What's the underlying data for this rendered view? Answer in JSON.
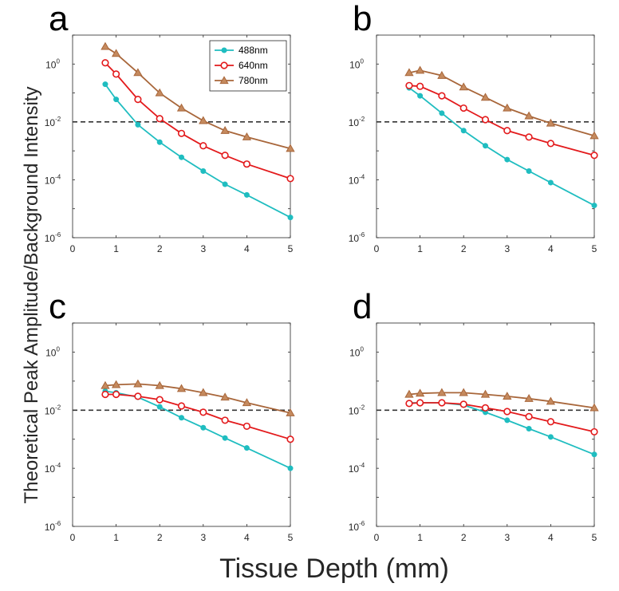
{
  "figure": {
    "ylabel": "Theoretical Peak Amplitude/Background Intensity",
    "xlabel": "Tissue Depth (mm)"
  },
  "colors": {
    "488nm": "#1FBDC0",
    "640nm": "#E31A1C",
    "780nm": "#A8663A",
    "threshold": "#000000"
  },
  "legend": {
    "placement": "top-right of panel a",
    "entries": [
      {
        "label": "488nm",
        "marker": "circle-filled",
        "color_key": "488nm"
      },
      {
        "label": "640nm",
        "marker": "circle-open",
        "color_key": "640nm"
      },
      {
        "label": "780nm",
        "marker": "triangle-filled",
        "color_key": "780nm"
      }
    ]
  },
  "chart_data": [
    {
      "panel": "a",
      "type": "line",
      "yscale": "log",
      "xlim": [
        0,
        5
      ],
      "ylim": [
        1e-06,
        10
      ],
      "xticks": [
        "0",
        "1",
        "2",
        "3",
        "4",
        "5"
      ],
      "yticks": [
        {
          "base": "10",
          "exp": "0"
        },
        {
          "base": "10",
          "exp": "-2"
        },
        {
          "base": "10",
          "exp": "-4"
        },
        {
          "base": "10",
          "exp": "-6"
        }
      ],
      "x": [
        0.75,
        1,
        1.5,
        2,
        2.5,
        3,
        3.5,
        4,
        5
      ],
      "threshold": 0.01,
      "series": [
        {
          "name": "488nm",
          "values": [
            0.2,
            0.06,
            0.008,
            0.002,
            0.0006,
            0.0002,
            7e-05,
            3e-05,
            5e-06
          ]
        },
        {
          "name": "640nm",
          "values": [
            1.1,
            0.45,
            0.06,
            0.013,
            0.004,
            0.0015,
            0.0007,
            0.00035,
            0.00011
          ]
        },
        {
          "name": "780nm",
          "values": [
            4,
            2.3,
            0.5,
            0.1,
            0.03,
            0.011,
            0.005,
            0.003,
            0.0012
          ]
        }
      ]
    },
    {
      "panel": "b",
      "type": "line",
      "yscale": "log",
      "xlim": [
        0,
        5
      ],
      "ylim": [
        1e-06,
        10
      ],
      "xticks": [
        "0",
        "1",
        "2",
        "3",
        "4",
        "5"
      ],
      "yticks": [
        {
          "base": "10",
          "exp": "0"
        },
        {
          "base": "10",
          "exp": "-2"
        },
        {
          "base": "10",
          "exp": "-4"
        },
        {
          "base": "10",
          "exp": "-6"
        }
      ],
      "x": [
        0.75,
        1,
        1.5,
        2,
        2.5,
        3,
        3.5,
        4,
        5
      ],
      "threshold": 0.01,
      "series": [
        {
          "name": "488nm",
          "values": [
            0.15,
            0.08,
            0.02,
            0.005,
            0.0015,
            0.0005,
            0.0002,
            8e-05,
            1.3e-05
          ]
        },
        {
          "name": "640nm",
          "values": [
            0.18,
            0.17,
            0.08,
            0.03,
            0.012,
            0.005,
            0.003,
            0.0018,
            0.0007
          ]
        },
        {
          "name": "780nm",
          "values": [
            0.5,
            0.6,
            0.4,
            0.16,
            0.07,
            0.03,
            0.016,
            0.009,
            0.0033
          ]
        }
      ]
    },
    {
      "panel": "c",
      "type": "line",
      "yscale": "log",
      "xlim": [
        0,
        5
      ],
      "ylim": [
        1e-06,
        10
      ],
      "xticks": [
        "0",
        "1",
        "2",
        "3",
        "4",
        "5"
      ],
      "yticks": [
        {
          "base": "10",
          "exp": "0"
        },
        {
          "base": "10",
          "exp": "-2"
        },
        {
          "base": "10",
          "exp": "-4"
        },
        {
          "base": "10",
          "exp": "-6"
        }
      ],
      "x": [
        0.75,
        1,
        1.5,
        2,
        2.5,
        3,
        3.5,
        4,
        5
      ],
      "threshold": 0.01,
      "series": [
        {
          "name": "488nm",
          "values": [
            0.045,
            0.04,
            0.028,
            0.013,
            0.0055,
            0.0025,
            0.0011,
            0.0005,
            0.0001
          ]
        },
        {
          "name": "640nm",
          "values": [
            0.035,
            0.035,
            0.03,
            0.023,
            0.014,
            0.0085,
            0.0045,
            0.0028,
            0.001
          ]
        },
        {
          "name": "780nm",
          "values": [
            0.07,
            0.075,
            0.08,
            0.07,
            0.055,
            0.04,
            0.028,
            0.018,
            0.008
          ]
        }
      ]
    },
    {
      "panel": "d",
      "type": "line",
      "yscale": "log",
      "xlim": [
        0,
        5
      ],
      "ylim": [
        1e-06,
        10
      ],
      "xticks": [
        "0",
        "1",
        "2",
        "3",
        "4",
        "5"
      ],
      "yticks": [
        {
          "base": "10",
          "exp": "0"
        },
        {
          "base": "10",
          "exp": "-2"
        },
        {
          "base": "10",
          "exp": "-4"
        },
        {
          "base": "10",
          "exp": "-6"
        }
      ],
      "x": [
        0.75,
        1,
        1.5,
        2,
        2.5,
        3,
        3.5,
        4,
        5
      ],
      "threshold": 0.01,
      "series": [
        {
          "name": "488nm",
          "values": [
            0.018,
            0.018,
            0.018,
            0.015,
            0.0085,
            0.0045,
            0.0023,
            0.0012,
            0.0003
          ]
        },
        {
          "name": "640nm",
          "values": [
            0.017,
            0.018,
            0.018,
            0.016,
            0.012,
            0.009,
            0.006,
            0.004,
            0.0018
          ]
        },
        {
          "name": "780nm",
          "values": [
            0.035,
            0.038,
            0.04,
            0.04,
            0.035,
            0.03,
            0.025,
            0.02,
            0.012
          ]
        }
      ]
    }
  ]
}
